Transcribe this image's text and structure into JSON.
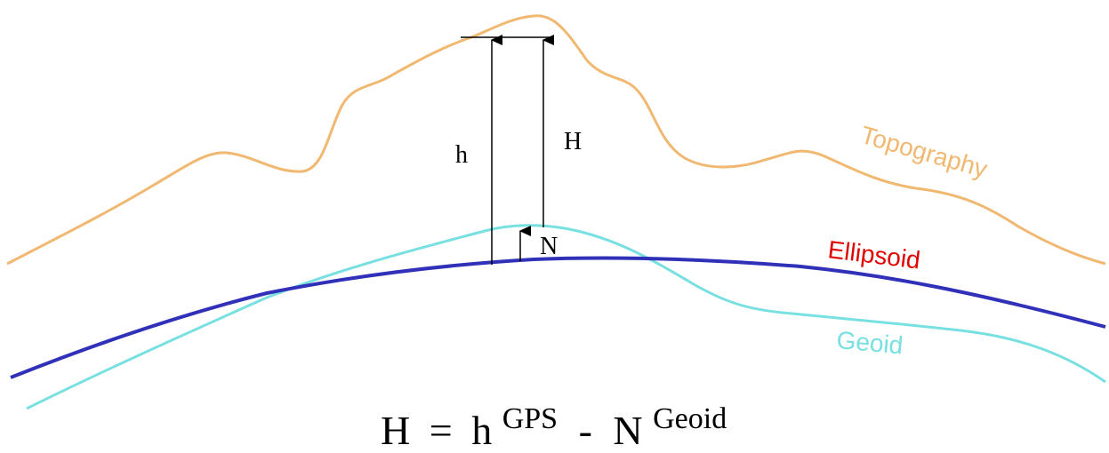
{
  "labels": {
    "topography": "Topography",
    "ellipsoid": "Ellipsoid",
    "geoid": "Geoid",
    "h": "h",
    "H": "H",
    "N": "N"
  },
  "formula": {
    "lhs": "H",
    "equals": "=",
    "h": "h",
    "h_sup": "GPS",
    "minus": "-",
    "n": "N",
    "n_sup": "Geoid"
  },
  "colors": {
    "topography": "#F0B870",
    "ellipsoid": "#3030B8",
    "geoid": "#78E0E0",
    "ellipsoid_label": "#E00000",
    "lines": "#000000"
  }
}
